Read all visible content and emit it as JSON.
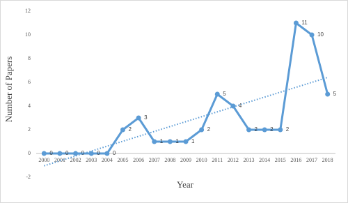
{
  "chart_data": {
    "type": "line",
    "x_label": "Year",
    "y_label": "Number of Papers",
    "categories": [
      "2000",
      "2001",
      "2002",
      "2003",
      "2004",
      "2005",
      "2006",
      "2007",
      "2008",
      "2009",
      "2010",
      "2011",
      "2012",
      "2013",
      "2014",
      "2015",
      "2016",
      "2017",
      "2018"
    ],
    "series": [
      {
        "color": "#5b9bd5",
        "values": [
          0,
          0,
          0,
          0,
          0,
          2,
          3,
          1,
          1,
          1,
          2,
          5,
          4,
          2,
          2,
          2,
          11,
          10,
          5
        ]
      }
    ],
    "trend": {
      "color": "#5b9bd5",
      "values": [
        -1.04,
        6.41
      ]
    },
    "ylim": [
      -2,
      12
    ],
    "yticks": [
      -2,
      0,
      2,
      4,
      6,
      8,
      10,
      12
    ]
  }
}
